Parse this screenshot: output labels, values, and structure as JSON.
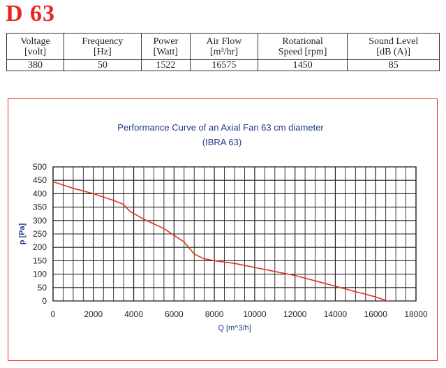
{
  "model": "D 63",
  "specs": {
    "headers": [
      [
        "Voltage",
        "[volt]"
      ],
      [
        "Frequency",
        "[Hz]"
      ],
      [
        "Power",
        "[Watt]"
      ],
      [
        "Air Flow",
        "[m³/hr]"
      ],
      [
        "Rotational",
        "Speed [rpm]"
      ],
      [
        "Sound Level",
        "[dB (A)]"
      ]
    ],
    "values": [
      "380",
      "50",
      "1522",
      "16575",
      "1450",
      "85"
    ]
  },
  "colors": {
    "accent": "#e8251f",
    "title": "#1f3a8a",
    "curve": "#e03020",
    "grid": "#222222"
  },
  "chart_data": {
    "type": "line",
    "title": "Performance Curve of an Axial Fan 63 cm diameter",
    "subtitle": "(IBRA 63)",
    "xlabel": "Q [m^3/h]",
    "ylabel": "p [Pa]",
    "xlim": [
      0,
      18000
    ],
    "ylim": [
      0,
      500
    ],
    "x_ticks": [
      "0",
      "2000",
      "4000",
      "6000",
      "8000",
      "10000",
      "12000",
      "14000",
      "16000",
      "18000"
    ],
    "y_ticks": [
      "0",
      "50",
      "100",
      "150",
      "200",
      "250",
      "300",
      "350",
      "400",
      "450",
      "500"
    ],
    "grid": true,
    "series": [
      {
        "x": [
          0,
          1000,
          2000,
          3000,
          3500,
          3800,
          4500,
          5500,
          6000,
          6500,
          7000,
          7500,
          8000,
          9000,
          10000,
          11000,
          12000,
          13000,
          14000,
          15000,
          16000,
          16575
        ],
        "y": [
          445,
          420,
          400,
          375,
          360,
          335,
          305,
          270,
          245,
          220,
          175,
          157,
          150,
          140,
          125,
          110,
          95,
          75,
          55,
          35,
          15,
          0
        ]
      }
    ]
  }
}
